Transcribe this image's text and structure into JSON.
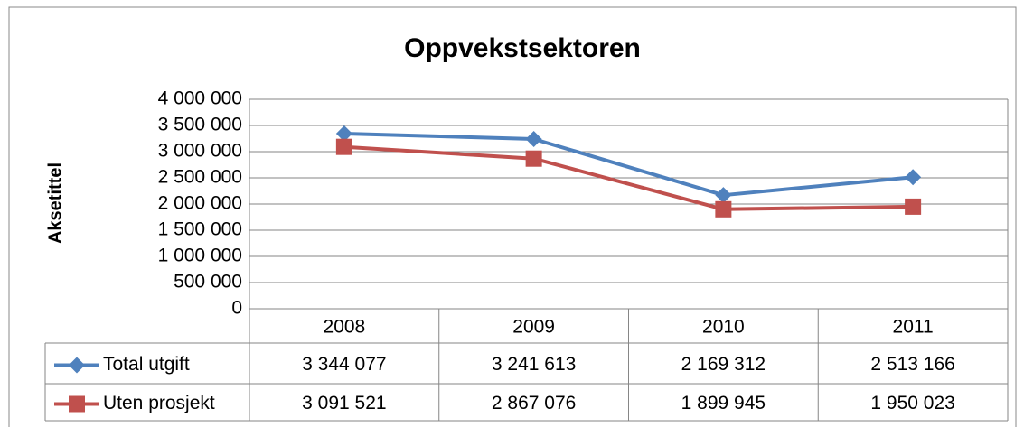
{
  "chart_data": {
    "type": "line",
    "title": "Oppvekstsektoren",
    "y_label": "Aksetittel",
    "categories": [
      "2008",
      "2009",
      "2010",
      "2011"
    ],
    "series": [
      {
        "name": "Total utgift",
        "color": "#4f81bd",
        "marker": "diamond",
        "values": [
          3344077,
          3241613,
          2169312,
          2513166
        ],
        "value_labels": [
          "3 344 077",
          "3 241 613",
          "2 169 312",
          "2 513 166"
        ]
      },
      {
        "name": "Uten prosjekt",
        "color": "#c0504d",
        "marker": "square",
        "values": [
          3091521,
          2867076,
          1899945,
          1950023
        ],
        "value_labels": [
          "3 091 521",
          "2 867 076",
          "1 899 945",
          "1 950 023"
        ]
      }
    ],
    "ylim": [
      0,
      4000000
    ],
    "yticks": [
      0,
      {
        "value": 500000,
        "label": "500 000"
      },
      {
        "value": 1000000,
        "label": "1 000 000"
      },
      {
        "value": 1500000,
        "label": "1 500 000"
      },
      {
        "value": 2000000,
        "label": "2 000 000"
      },
      {
        "value": 2500000,
        "label": "2 500 000"
      },
      {
        "value": 3000000,
        "label": "3 000 000"
      },
      {
        "value": 3500000,
        "label": "3 500 000"
      },
      {
        "value": 4000000,
        "label": "4 000 000"
      }
    ],
    "grid": true,
    "data_table": true
  }
}
